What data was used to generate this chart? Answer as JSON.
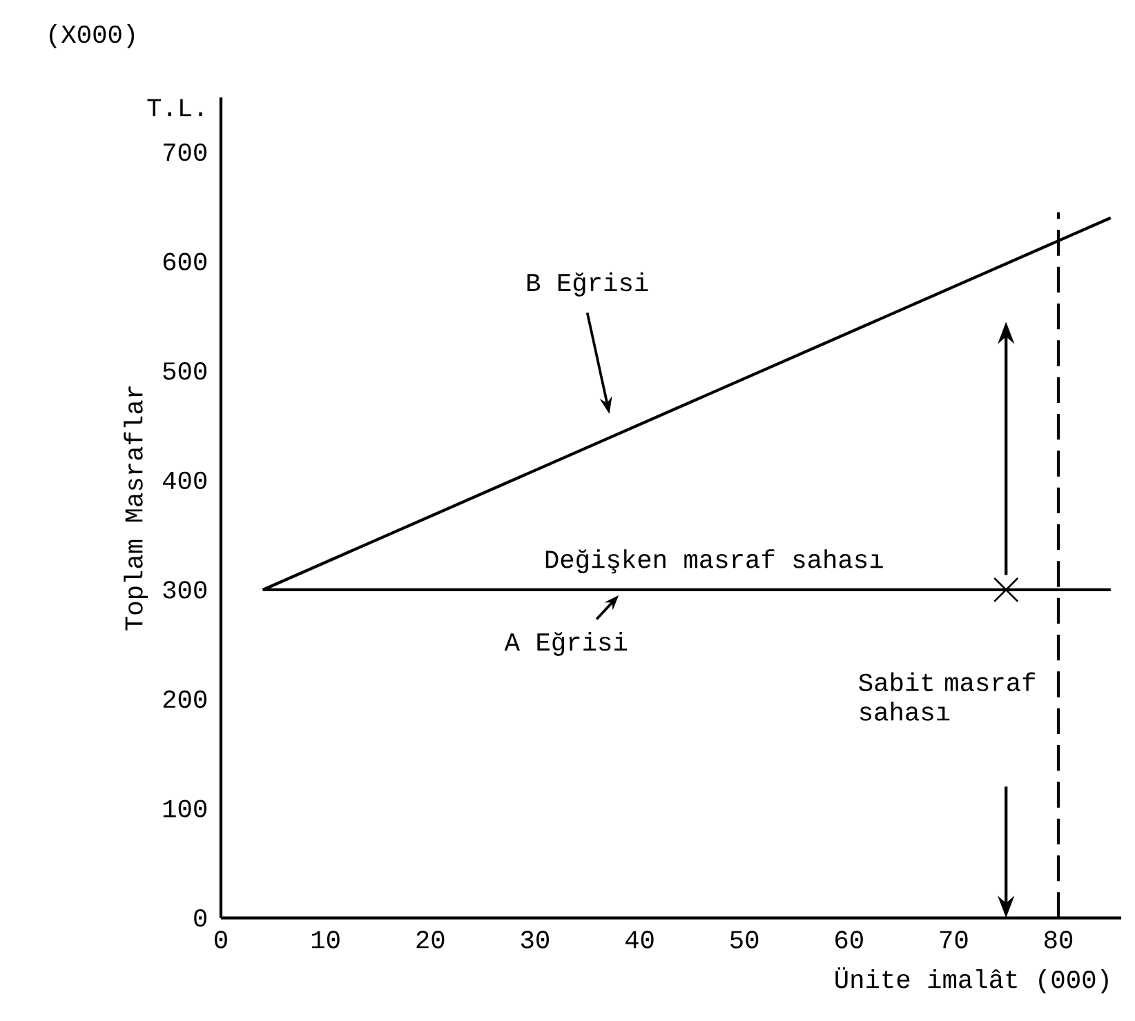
{
  "chart_data": {
    "type": "line",
    "xlabel": "Ünite imalât (000)",
    "ylabel": "Toplam Masraflar",
    "xlim": [
      0,
      86
    ],
    "ylim": [
      0,
      750
    ],
    "xticks": [
      0,
      10,
      20,
      30,
      40,
      50,
      60,
      70,
      80
    ],
    "yticks": [
      0,
      100,
      200,
      300,
      400,
      500,
      600,
      700
    ],
    "series": [
      {
        "color": "#000000",
        "x": [
          4,
          85
        ],
        "values": [
          300,
          300
        ]
      },
      {
        "color": "#000000",
        "x": [
          4,
          85
        ],
        "values": [
          300,
          640
        ]
      },
      {
        "type": "scatter",
        "marker": "cross",
        "color": "#000000",
        "x": [
          75
        ],
        "values": [
          300
        ]
      }
    ],
    "ref_lines": [
      {
        "axis": "x",
        "value": 80,
        "line_style": "dashed",
        "color": "#000000"
      }
    ],
    "annotations": [
      "(X000)",
      "T.L.",
      "B Eğrisi",
      {
        "text": "A Eğrisi",
        "x": 38,
        "y": 300
      },
      "Değişken masraf sahası",
      "Sabit masraf sahası"
    ],
    "grid": false,
    "line_style": "solid"
  }
}
